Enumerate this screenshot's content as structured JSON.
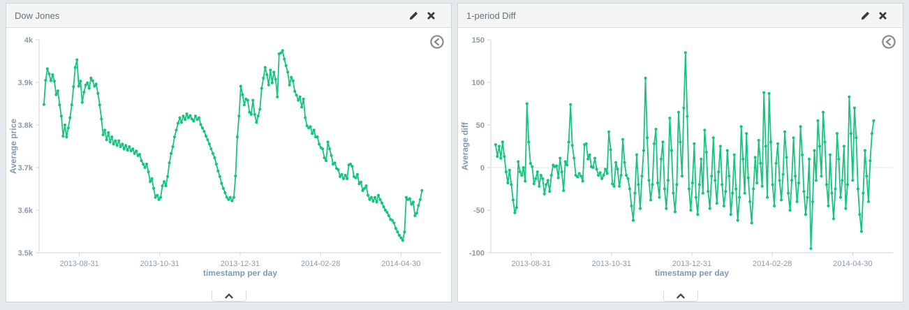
{
  "page": {
    "background": "#e4e9ec",
    "panel_bg": "#ffffff",
    "header_bg": "#f4f5f5"
  },
  "charts": [
    {
      "title": "Dow Jones",
      "ylabel": "Average price",
      "xlabel": "timestamp per day"
    },
    {
      "title": "1-period Diff",
      "ylabel": "Average diff",
      "xlabel": "timestamp per day"
    }
  ],
  "icons": {
    "edit": "pencil-icon",
    "remove": "close-icon",
    "back": "circle-arrow-left-icon",
    "collapse": "chevron-up-icon"
  },
  "colors": {
    "series_green": "#15c57d",
    "axis_line": "#ccd6dd",
    "tick_text": "#8c99a6",
    "axis_title": "#7d9ab4",
    "icon_dark": "#3b3b3b",
    "back_icon_gray": "#8d8d8d"
  },
  "chart_data": [
    {
      "type": "line",
      "title": "Dow Jones",
      "xlabel": "timestamp per day",
      "ylabel": "Average price",
      "x_ticks": [
        "2013-08-31",
        "2013-10-31",
        "2013-12-31",
        "2014-02-28",
        "2014-04-30"
      ],
      "y_ticks": [
        4000,
        3900,
        3800,
        3700,
        3600,
        3500
      ],
      "y_tick_labels": [
        "4k",
        "3.9k",
        "3.8k",
        "3.7k",
        "3.6k",
        "3.5k"
      ],
      "ylim": [
        3500,
        4000
      ],
      "zero_line": false,
      "grid": false,
      "legend": "none",
      "line_color": "#15c57d",
      "markers": true,
      "values": [
        3848,
        3905,
        3932,
        3920,
        3904,
        3918,
        3903,
        3871,
        3880,
        3847,
        3821,
        3774,
        3800,
        3772,
        3793,
        3817,
        3847,
        3890,
        3935,
        3953,
        3891,
        3903,
        3853,
        3877,
        3894,
        3899,
        3886,
        3910,
        3904,
        3891,
        3896,
        3874,
        3847,
        3814,
        3777,
        3788,
        3765,
        3782,
        3760,
        3772,
        3755,
        3763,
        3752,
        3763,
        3749,
        3755,
        3744,
        3752,
        3741,
        3749,
        3739,
        3744,
        3733,
        3739,
        3728,
        3731,
        3716,
        3708,
        3700,
        3708,
        3690,
        3667,
        3674,
        3651,
        3630,
        3635,
        3625,
        3630,
        3657,
        3667,
        3657,
        3679,
        3711,
        3733,
        3749,
        3772,
        3788,
        3804,
        3817,
        3806,
        3821,
        3813,
        3826,
        3817,
        3822,
        3814,
        3809,
        3821,
        3813,
        3817,
        3801,
        3793,
        3785,
        3774,
        3765,
        3755,
        3744,
        3733,
        3723,
        3708,
        3692,
        3679,
        3663,
        3651,
        3641,
        3630,
        3625,
        3630,
        3622,
        3630,
        3680,
        3772,
        3821,
        3891,
        3871,
        3847,
        3861,
        3858,
        3830,
        3825,
        3858,
        3825,
        3806,
        3821,
        3837,
        3886,
        3910,
        3935,
        3918,
        3894,
        3929,
        3899,
        3924,
        3907,
        3866,
        3967,
        3969,
        3975,
        3955,
        3939,
        3924,
        3894,
        3912,
        3904,
        3879,
        3870,
        3858,
        3866,
        3842,
        3861,
        3817,
        3798,
        3793,
        3796,
        3780,
        3788,
        3772,
        3772,
        3755,
        3747,
        3744,
        3723,
        3716,
        3760,
        3744,
        3728,
        3708,
        3711,
        3698,
        3695,
        3679,
        3684,
        3674,
        3682,
        3674,
        3706,
        3708,
        3703,
        3679,
        3676,
        3684,
        3662,
        3666,
        3646,
        3651,
        3657,
        3635,
        3625,
        3630,
        3621,
        3630,
        3619,
        3635,
        3625,
        3617,
        3608,
        3600,
        3595,
        3587,
        3578,
        3576,
        3570,
        3557,
        3549,
        3541,
        3535,
        3529,
        3549,
        3630,
        3625,
        3627,
        3614,
        3619,
        3587,
        3593,
        3611,
        3625,
        3646
      ]
    },
    {
      "type": "line",
      "title": "1-period Diff",
      "xlabel": "timestamp per day",
      "ylabel": "Average diff",
      "x_ticks": [
        "2013-08-31",
        "2013-10-31",
        "2013-12-31",
        "2014-02-28",
        "2014-04-30"
      ],
      "y_ticks": [
        150,
        100,
        50,
        0,
        -50,
        -100
      ],
      "y_tick_labels": [
        "150",
        "100",
        "50",
        "0",
        "-50",
        "-100"
      ],
      "ylim": [
        -100,
        150
      ],
      "zero_line": true,
      "grid": false,
      "legend": "none",
      "line_color": "#15c57d",
      "markers": true,
      "values": [
        27,
        13,
        25,
        11,
        30,
        13,
        -5,
        -18,
        -3,
        -20,
        -38,
        -53,
        -47,
        7,
        -5,
        -9,
        0,
        -16,
        75,
        30,
        5,
        1,
        -19,
        -13,
        -5,
        -22,
        -9,
        -13,
        -31,
        -20,
        -15,
        -28,
        -9,
        3,
        1,
        2,
        -12,
        11,
        -5,
        -27,
        7,
        3,
        30,
        74,
        26,
        11,
        -9,
        -11,
        -7,
        -10,
        -16,
        27,
        28,
        10,
        15,
        1,
        0,
        11,
        -2,
        -9,
        -6,
        -13,
        -9,
        -2,
        -7,
        42,
        21,
        -19,
        -22,
        6,
        -2,
        -22,
        -9,
        33,
        6,
        -9,
        -13,
        -25,
        -45,
        -62,
        -30,
        15,
        -20,
        -48,
        -10,
        20,
        105,
        35,
        -15,
        -38,
        -20,
        28,
        45,
        -18,
        -35,
        10,
        30,
        -25,
        -48,
        -15,
        58,
        20,
        -30,
        -52,
        -20,
        65,
        30,
        -10,
        70,
        135,
        60,
        -25,
        -50,
        -18,
        28,
        -35,
        -55,
        -20,
        10,
        -30,
        44,
        18,
        -28,
        -48,
        -10,
        35,
        -15,
        -42,
        -5,
        25,
        -20,
        -45,
        -28,
        20,
        -10,
        -55,
        -30,
        15,
        -25,
        -62,
        -35,
        48,
        10,
        -30,
        40,
        -12,
        -40,
        -65,
        -25,
        12,
        -18,
        32,
        5,
        -22,
        88,
        25,
        -35,
        87,
        30,
        -20,
        -45,
        5,
        28,
        -15,
        -38,
        -8,
        42,
        12,
        -30,
        -50,
        -15,
        35,
        -10,
        -40,
        -18,
        48,
        15,
        -28,
        -55,
        -35,
        10,
        -95,
        -40,
        20,
        -15,
        55,
        25,
        -10,
        65,
        30,
        -20,
        -45,
        15,
        -30,
        -60,
        -25,
        40,
        10,
        -35,
        -15,
        25,
        -48,
        -20,
        83,
        40,
        -15,
        70,
        35,
        -25,
        -55,
        -75,
        -30,
        20,
        -10,
        -40,
        8,
        40,
        55
      ]
    }
  ]
}
